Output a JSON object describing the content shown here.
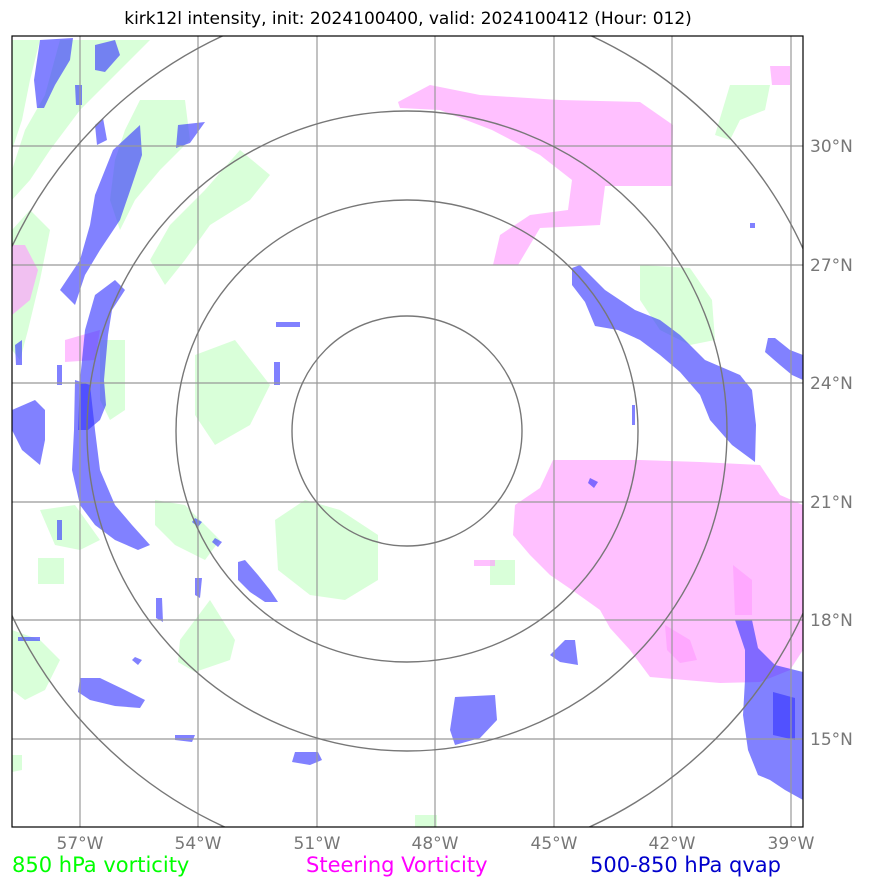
{
  "title": "kirk12l intensity, init: 2024100400, valid: 2024100412 (Hour: 012)",
  "lon_ticks": [
    "57°W",
    "54°W",
    "51°W",
    "48°W",
    "45°W",
    "42°W",
    "39°W"
  ],
  "lat_ticks": [
    "30°N",
    "27°N",
    "24°N",
    "21°N",
    "18°N",
    "15°N"
  ],
  "legend": {
    "vort850": "850 hPa vorticity",
    "steering": "Steering Vorticity",
    "qvap": "500-850 hPa qvap"
  },
  "colors": {
    "vort850": "#ccffcc",
    "steering": "#ff99ff",
    "qvap": "#3333ff",
    "grid": "#999999",
    "rings": "#777777",
    "tick_label": "#777777"
  }
}
